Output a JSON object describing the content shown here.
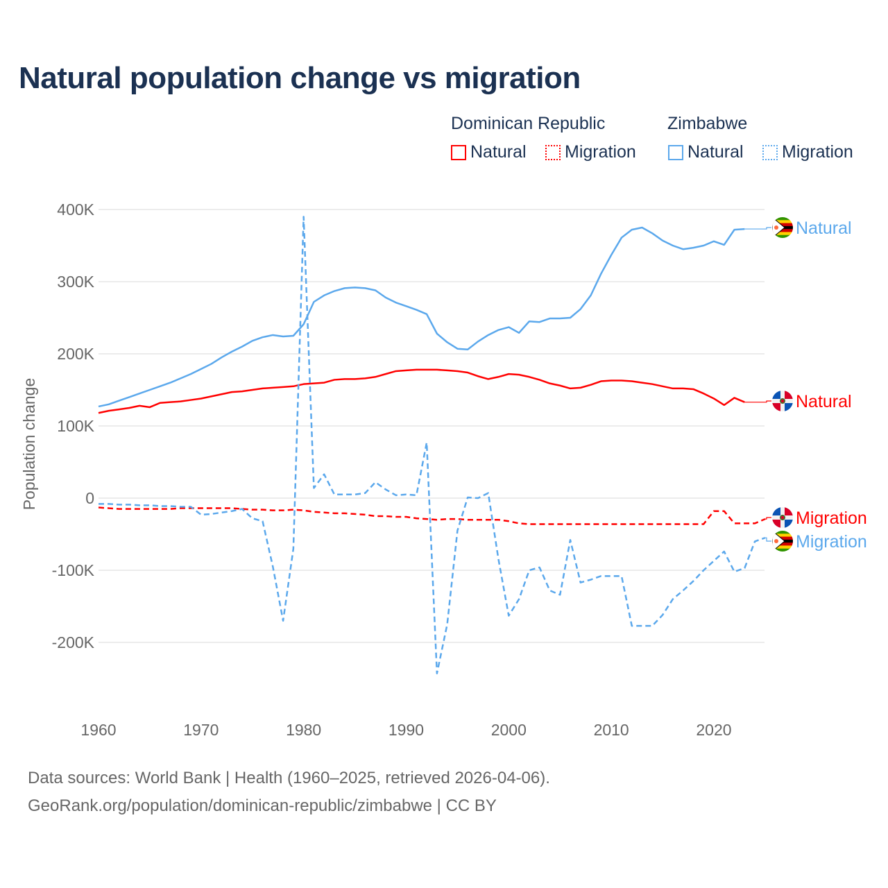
{
  "chart_data": {
    "type": "line",
    "title": "Natural population change vs migration",
    "xlabel": "",
    "ylabel": "Population change",
    "xlim": [
      1960,
      2025
    ],
    "ylim": [
      -250000,
      400000
    ],
    "grid": true,
    "legend_position": "top-right",
    "x_ticks": [
      "1960",
      "1970",
      "1980",
      "1990",
      "2000",
      "2010",
      "2020"
    ],
    "x_tick_values": [
      1960,
      1970,
      1980,
      1990,
      2000,
      2010,
      2020
    ],
    "y_ticks": [
      "400K",
      "300K",
      "200K",
      "100K",
      "0",
      "-100K",
      "-200K"
    ],
    "y_tick_values": [
      400000,
      300000,
      200000,
      100000,
      0,
      -100000,
      -200000
    ],
    "legend_groups": [
      {
        "country": "Dominican Republic",
        "items": [
          "Natural",
          "Migration"
        ]
      },
      {
        "country": "Zimbabwe",
        "items": [
          "Natural",
          "Migration"
        ]
      }
    ],
    "series": [
      {
        "name": "Zimbabwe Natural",
        "label": "Natural",
        "country": "Zimbabwe",
        "flag": "zimbabwe-flag",
        "color": "#5ba8ec",
        "dashed": false,
        "start": 1960,
        "values": [
          127,
          130,
          135,
          140,
          145,
          150,
          155,
          160,
          166,
          172,
          179,
          186,
          195,
          203,
          210,
          218,
          223,
          226,
          224,
          225,
          241,
          272,
          281,
          287,
          291,
          292,
          291,
          288,
          278,
          271,
          266,
          261,
          255,
          228,
          216,
          207,
          206,
          217,
          226,
          233,
          237,
          229,
          245,
          244,
          249,
          249,
          250,
          262,
          281,
          311,
          337,
          361,
          372,
          375,
          367,
          357,
          350,
          345,
          347,
          350,
          356,
          351,
          372,
          373
        ]
      },
      {
        "name": "Dominican Republic Natural",
        "label": "Natural",
        "country": "Dominican Republic",
        "flag": "dominican-republic-flag",
        "color": "#ff0000",
        "dashed": false,
        "start": 1960,
        "values": [
          118,
          121,
          123,
          125,
          128,
          126,
          132,
          133,
          134,
          136,
          138,
          141,
          144,
          147,
          148,
          150,
          152,
          153,
          154,
          155,
          158,
          159,
          160,
          164,
          165,
          165,
          166,
          168,
          172,
          176,
          177,
          178,
          178,
          178,
          177,
          176,
          174,
          169,
          165,
          168,
          172,
          171,
          168,
          164,
          159,
          156,
          152,
          153,
          157,
          162,
          163,
          163,
          162,
          160,
          158,
          155,
          152,
          152,
          151,
          145,
          138,
          129,
          139,
          133
        ]
      },
      {
        "name": "Dominican Republic Migration",
        "label": "Migration",
        "country": "Dominican Republic",
        "flag": "dominican-republic-flag",
        "color": "#ff0000",
        "dashed": true,
        "start": 1960,
        "values": [
          -13,
          -14,
          -15,
          -15,
          -15,
          -15,
          -15,
          -15,
          -14,
          -14,
          -14,
          -14,
          -14,
          -14,
          -15,
          -16,
          -16,
          -17,
          -17,
          -16,
          -17,
          -19,
          -20,
          -21,
          -21,
          -22,
          -23,
          -25,
          -25,
          -26,
          -26,
          -28,
          -29,
          -30,
          -29,
          -29,
          -30,
          -30,
          -30,
          -30,
          -32,
          -35,
          -36,
          -36,
          -36,
          -36,
          -36,
          -36,
          -36,
          -36,
          -36,
          -36,
          -36,
          -36,
          -36,
          -36,
          -36,
          -36,
          -36,
          -36,
          -18,
          -18,
          -35,
          -35,
          -35,
          -29
        ]
      },
      {
        "name": "Zimbabwe Migration",
        "label": "Migration",
        "country": "Zimbabwe",
        "flag": "zimbabwe-flag",
        "color": "#5ba8ec",
        "dashed": true,
        "start": 1960,
        "values": [
          -8,
          -8,
          -9,
          -9,
          -10,
          -10,
          -11,
          -11,
          -12,
          -12,
          -23,
          -22,
          -20,
          -18,
          -15,
          -28,
          -32,
          -95,
          -170,
          -70,
          390,
          14,
          33,
          5,
          5,
          5,
          7,
          22,
          12,
          4,
          5,
          4,
          77,
          -243,
          -175,
          -45,
          1,
          0,
          7,
          -85,
          -163,
          -140,
          -100,
          -96,
          -128,
          -134,
          -58,
          -117,
          -113,
          -108,
          -108,
          -108,
          -177,
          -177,
          -177,
          -162,
          -140,
          -128,
          -115,
          -100,
          -87,
          -74,
          -102,
          -97,
          -60,
          -55
        ]
      }
    ],
    "units": "thousands"
  },
  "footer": {
    "line1": "Data sources: World Bank | Health (1960–2025, retrieved 2026-04-06).",
    "line2": "GeoRank.org/population/dominican-republic/zimbabwe | CC BY"
  }
}
